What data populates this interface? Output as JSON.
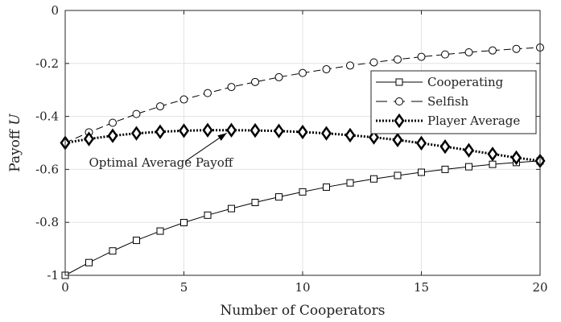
{
  "chart_data": {
    "type": "line",
    "title": "",
    "xlabel": "Number of Cooperators",
    "ylabel_main": "Payoff ",
    "ylabel_var": "U",
    "xlim": [
      0,
      20
    ],
    "ylim": [
      -1,
      0
    ],
    "xticks": [
      0,
      5,
      10,
      15,
      20
    ],
    "yticks": [
      -1,
      -0.8,
      -0.6,
      -0.4,
      -0.2,
      0
    ],
    "xtick_labels": [
      "0",
      "5",
      "10",
      "15",
      "20"
    ],
    "ytick_labels": [
      "-1",
      "-0.8",
      "-0.6",
      "-0.4",
      "-0.2",
      "0"
    ],
    "grid": true,
    "legend_placement": "top-right",
    "series": [
      {
        "name": "Cooperating",
        "line": "solid",
        "marker": "square",
        "x": [
          0,
          1,
          2,
          3,
          4,
          5,
          6,
          7,
          8,
          9,
          10,
          11,
          12,
          13,
          14,
          15,
          16,
          17,
          18,
          19,
          20
        ],
        "y": [
          null,
          -0.952,
          -0.908,
          -0.868,
          -0.833,
          -0.801,
          -0.773,
          -0.748,
          -0.725,
          -0.704,
          -0.685,
          -0.667,
          -0.651,
          -0.636,
          -0.623,
          -0.611,
          -0.6,
          -0.59,
          -0.581,
          -0.574,
          -0.568
        ]
      },
      {
        "name": "Selfish",
        "line": "dashed",
        "marker": "circle",
        "x": [
          0,
          1,
          2,
          3,
          4,
          5,
          6,
          7,
          8,
          9,
          10,
          11,
          12,
          13,
          14,
          15,
          16,
          17,
          18,
          19,
          20
        ],
        "y": [
          -0.5,
          -0.46,
          -0.424,
          -0.391,
          -0.362,
          -0.336,
          -0.312,
          -0.289,
          -0.27,
          -0.252,
          -0.236,
          -0.222,
          -0.208,
          -0.196,
          -0.185,
          -0.175,
          -0.166,
          -0.158,
          -0.151,
          -0.145,
          -0.14
        ]
      },
      {
        "name": "Player Average",
        "line": "dotted",
        "marker": "diamond",
        "x": [
          0,
          1,
          2,
          3,
          4,
          5,
          6,
          7,
          8,
          9,
          10,
          11,
          12,
          13,
          14,
          15,
          16,
          17,
          18,
          19,
          20
        ],
        "y": [
          -0.5,
          -0.485,
          -0.473,
          -0.464,
          -0.458,
          -0.454,
          -0.452,
          -0.452,
          -0.453,
          -0.455,
          -0.459,
          -0.464,
          -0.471,
          -0.479,
          -0.489,
          -0.501,
          -0.514,
          -0.528,
          -0.542,
          -0.556,
          -0.568
        ]
      }
    ],
    "extra_points": [
      {
        "series": "Cooperating",
        "x": 0,
        "y": -1.0
      }
    ],
    "annotation": {
      "text": "Optimal Average Payoff",
      "text_x": 1.0,
      "text_y": -0.59,
      "arrow_from": [
        5.05,
        -0.57
      ],
      "arrow_to": [
        6.8,
        -0.463
      ]
    }
  }
}
